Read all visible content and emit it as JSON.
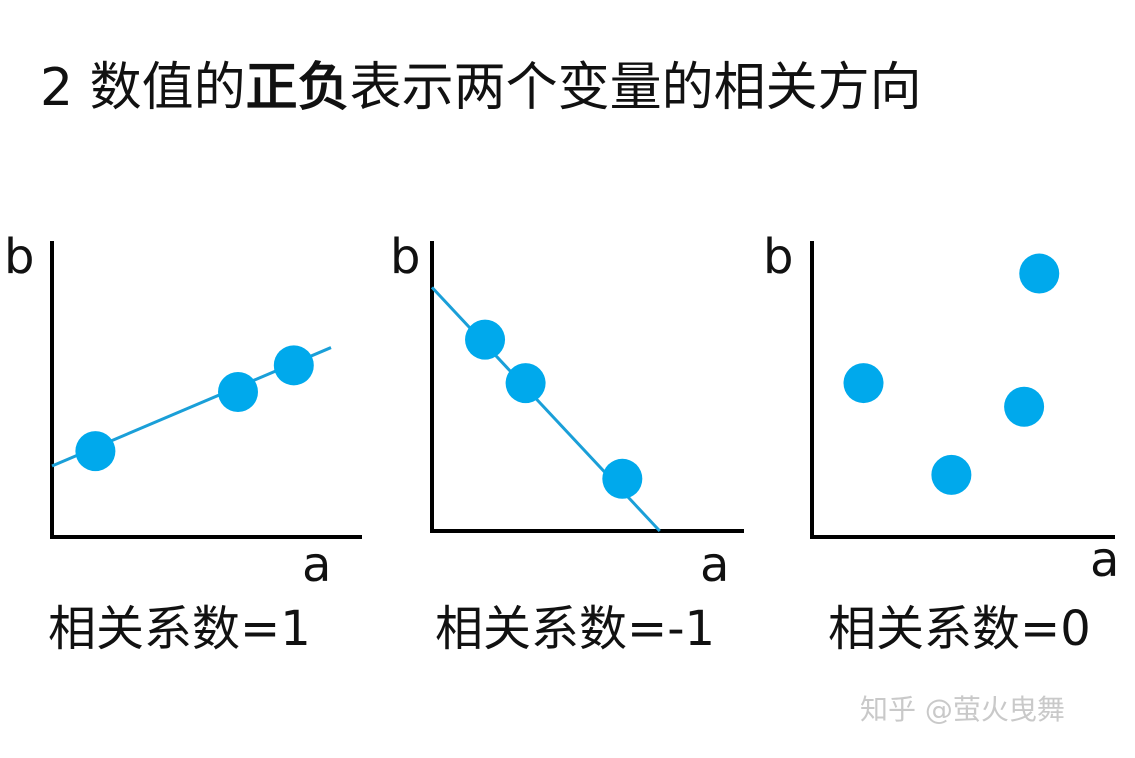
{
  "title": {
    "prefix": "2 数值的",
    "bold": "正负",
    "suffix": "表示两个变量的相关方向"
  },
  "colors": {
    "point": "#00a9ec",
    "line": "#1a9fd8",
    "axis": "#000000"
  },
  "chart_data": [
    {
      "type": "scatter",
      "xlabel": "a",
      "ylabel": "b",
      "caption": "相关系数=1",
      "points": [
        [
          0.14,
          0.29
        ],
        [
          0.6,
          0.49
        ],
        [
          0.78,
          0.58
        ]
      ],
      "fit_line": [
        [
          0.0,
          0.24
        ],
        [
          0.9,
          0.64
        ]
      ]
    },
    {
      "type": "scatter",
      "xlabel": "a",
      "ylabel": "b",
      "caption": "相关系数=-1",
      "points": [
        [
          0.17,
          0.66
        ],
        [
          0.3,
          0.51
        ],
        [
          0.61,
          0.18
        ]
      ],
      "fit_line": [
        [
          0.0,
          0.84
        ],
        [
          0.73,
          0.0
        ]
      ]
    },
    {
      "type": "scatter",
      "xlabel": "a",
      "ylabel": "b",
      "caption": "相关系数=0",
      "points": [
        [
          0.17,
          0.52
        ],
        [
          0.46,
          0.21
        ],
        [
          0.7,
          0.44
        ],
        [
          0.75,
          0.89
        ]
      ],
      "fit_line": null
    }
  ],
  "watermark": "知乎 @萤火曳舞"
}
